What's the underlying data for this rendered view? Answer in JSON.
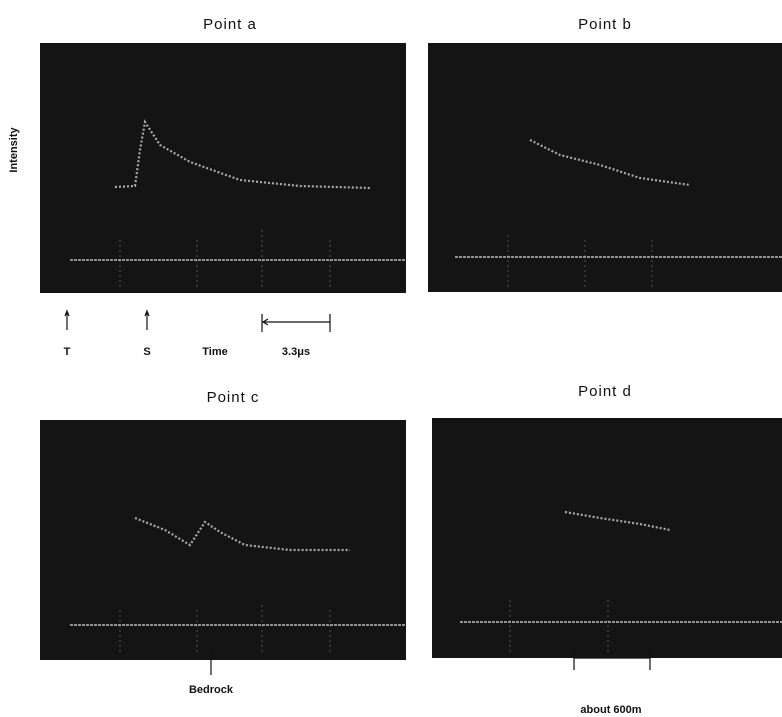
{
  "panels": [
    {
      "title": "Point a"
    },
    {
      "title": "Point b"
    },
    {
      "title": "Point c"
    },
    {
      "title": "Point d"
    }
  ],
  "y_label": "Intensity",
  "markers": {
    "t": "T",
    "s": "S",
    "time": "Time",
    "scale": "3.3μs",
    "bedrock": "Bedrock",
    "distance": "about 600m"
  }
}
